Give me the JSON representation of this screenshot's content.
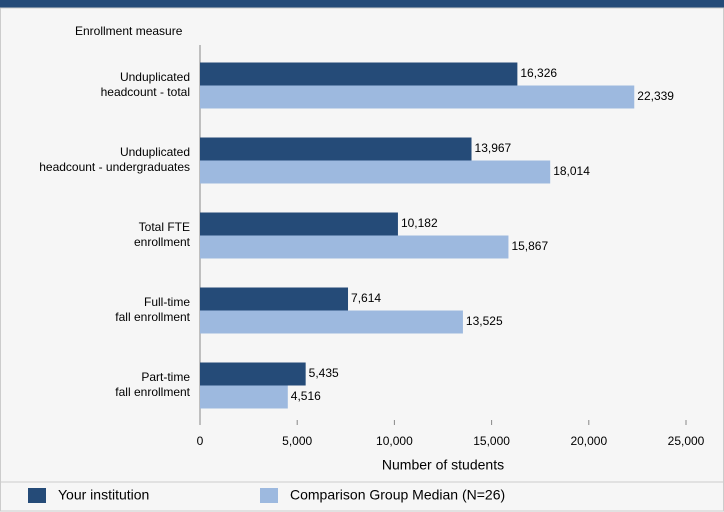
{
  "chart_data": {
    "type": "bar",
    "orientation": "horizontal",
    "y_axis_title": "Enrollment measure",
    "x_axis_title": "Number of students",
    "categories": [
      [
        "Unduplicated",
        "headcount - total"
      ],
      [
        "Unduplicated",
        "headcount - undergraduates"
      ],
      [
        "Total FTE",
        "enrollment"
      ],
      [
        "Full-time",
        "fall enrollment"
      ],
      [
        "Part-time",
        "fall enrollment"
      ]
    ],
    "series": [
      {
        "name": "Your institution",
        "color": "#254b78",
        "values": [
          16326,
          13967,
          10182,
          7614,
          5435
        ],
        "value_labels": [
          "16,326",
          "13,967",
          "10,182",
          "7,614",
          "5,435"
        ]
      },
      {
        "name": "Comparison Group Median (N=26)",
        "color": "#9db9df",
        "values": [
          22339,
          18014,
          15867,
          13525,
          4516
        ],
        "value_labels": [
          "22,339",
          "18,014",
          "15,867",
          "13,525",
          "4,516"
        ]
      }
    ],
    "xlim": [
      0,
      25000
    ],
    "xticks": [
      0,
      {
        "value": 5000,
        "label": "5,000"
      },
      {
        "value": 10000,
        "label": "10,000"
      },
      {
        "value": 15000,
        "label": "15,000"
      },
      {
        "value": 20000,
        "label": "20,000"
      },
      {
        "value": 25000,
        "label": "25,000"
      }
    ],
    "legend": "bottom"
  }
}
